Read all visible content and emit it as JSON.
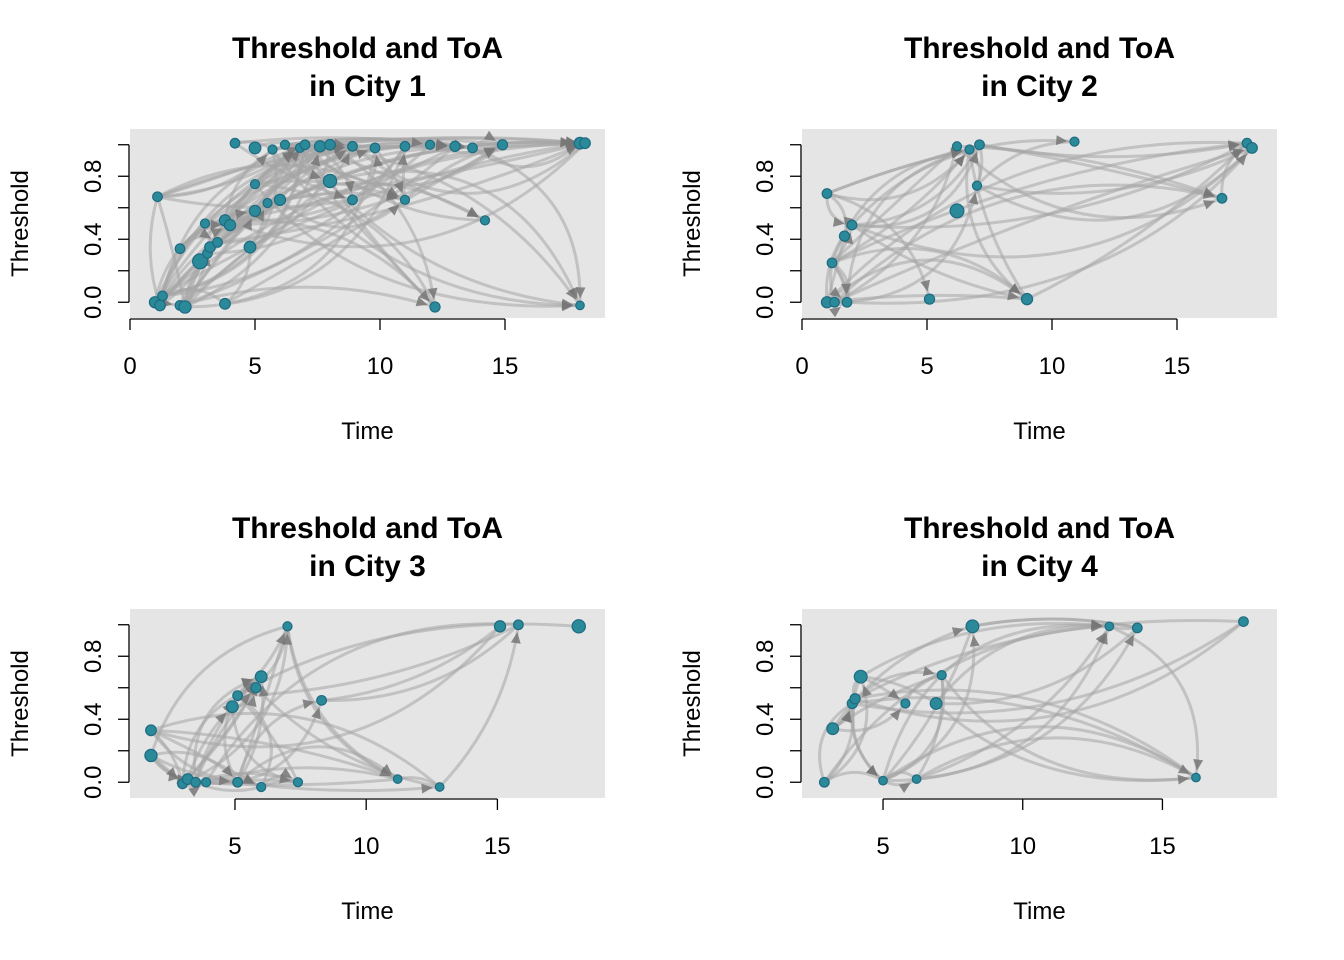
{
  "colors": {
    "panel_background": "#e5e5e5",
    "node": "#2a8a99",
    "node_border": "#1f6b82",
    "edge": "#a6a6a6",
    "arrow": "#777777"
  },
  "chart_data": [
    {
      "type": "network-scatter",
      "title_line1": "Threshold and ToA",
      "title_line2": "in City 1",
      "xlabel": "Time",
      "ylabel": "Threshold",
      "xlim": [
        0,
        19
      ],
      "ylim": [
        -0.1,
        1.1
      ],
      "xticks": [
        0,
        5,
        10,
        15
      ],
      "yticks": [
        0.0,
        0.4,
        0.8
      ],
      "yminor": [
        0.2,
        0.6,
        1.0
      ],
      "grid": false,
      "nodes": [
        {
          "x": 1.0,
          "y": 0.0,
          "s": 1.3
        },
        {
          "x": 1.2,
          "y": -0.02,
          "s": 1.2
        },
        {
          "x": 1.3,
          "y": 0.04,
          "s": 1.0
        },
        {
          "x": 1.1,
          "y": 0.67,
          "s": 1.0
        },
        {
          "x": 2.0,
          "y": 0.34,
          "s": 1.0
        },
        {
          "x": 2.0,
          "y": -0.02,
          "s": 1.0
        },
        {
          "x": 2.2,
          "y": -0.03,
          "s": 1.5
        },
        {
          "x": 2.8,
          "y": 0.26,
          "s": 2.0
        },
        {
          "x": 3.1,
          "y": 0.31,
          "s": 1.0
        },
        {
          "x": 3.2,
          "y": 0.35,
          "s": 1.2
        },
        {
          "x": 3.0,
          "y": 0.5,
          "s": 0.9
        },
        {
          "x": 3.5,
          "y": 0.38,
          "s": 1.0
        },
        {
          "x": 3.8,
          "y": 0.52,
          "s": 1.3
        },
        {
          "x": 4.0,
          "y": 0.49,
          "s": 1.3
        },
        {
          "x": 3.8,
          "y": -0.01,
          "s": 1.2
        },
        {
          "x": 4.2,
          "y": 1.01,
          "s": 1.0
        },
        {
          "x": 4.8,
          "y": 0.35,
          "s": 1.4
        },
        {
          "x": 5.0,
          "y": 0.98,
          "s": 1.4
        },
        {
          "x": 5.0,
          "y": 0.58,
          "s": 1.3
        },
        {
          "x": 5.0,
          "y": 0.75,
          "s": 0.9
        },
        {
          "x": 5.5,
          "y": 0.63,
          "s": 0.9
        },
        {
          "x": 5.7,
          "y": 0.97,
          "s": 0.9
        },
        {
          "x": 6.0,
          "y": 0.65,
          "s": 1.3
        },
        {
          "x": 6.2,
          "y": 1.0,
          "s": 0.9
        },
        {
          "x": 6.8,
          "y": 0.98,
          "s": 0.9
        },
        {
          "x": 7.0,
          "y": 1.0,
          "s": 1.0
        },
        {
          "x": 7.6,
          "y": 0.99,
          "s": 1.3
        },
        {
          "x": 8.0,
          "y": 0.77,
          "s": 1.7
        },
        {
          "x": 8.0,
          "y": 1.0,
          "s": 1.2
        },
        {
          "x": 8.9,
          "y": 0.99,
          "s": 1.0
        },
        {
          "x": 8.9,
          "y": 0.65,
          "s": 1.0
        },
        {
          "x": 9.8,
          "y": 0.98,
          "s": 1.0
        },
        {
          "x": 11.0,
          "y": 0.99,
          "s": 1.0
        },
        {
          "x": 11.0,
          "y": 0.65,
          "s": 0.9
        },
        {
          "x": 12.0,
          "y": 1.0,
          "s": 0.9
        },
        {
          "x": 12.2,
          "y": -0.03,
          "s": 1.1
        },
        {
          "x": 13.0,
          "y": 0.99,
          "s": 1.1
        },
        {
          "x": 13.7,
          "y": 0.98,
          "s": 1.0
        },
        {
          "x": 14.2,
          "y": 0.52,
          "s": 0.9
        },
        {
          "x": 14.9,
          "y": 1.0,
          "s": 1.1
        },
        {
          "x": 18.0,
          "y": -0.02,
          "s": 0.8
        },
        {
          "x": 18.0,
          "y": 1.01,
          "s": 1.4
        },
        {
          "x": 18.2,
          "y": 1.01,
          "s": 1.2
        }
      ]
    },
    {
      "type": "network-scatter",
      "title_line1": "Threshold and ToA",
      "title_line2": "in City 2",
      "xlabel": "Time",
      "ylabel": "Threshold",
      "xlim": [
        0,
        19
      ],
      "ylim": [
        -0.1,
        1.1
      ],
      "xticks": [
        0,
        5,
        10,
        15
      ],
      "yticks": [
        0.0,
        0.4,
        0.8
      ],
      "yminor": [
        0.2,
        0.6,
        1.0
      ],
      "grid": false,
      "nodes": [
        {
          "x": 1.0,
          "y": 0.0,
          "s": 1.3
        },
        {
          "x": 1.0,
          "y": 0.69,
          "s": 1.0
        },
        {
          "x": 1.2,
          "y": 0.25,
          "s": 1.0
        },
        {
          "x": 1.3,
          "y": 0.0,
          "s": 1.0
        },
        {
          "x": 1.7,
          "y": 0.42,
          "s": 1.1
        },
        {
          "x": 1.8,
          "y": 0.0,
          "s": 1.0
        },
        {
          "x": 2.0,
          "y": 0.49,
          "s": 1.0
        },
        {
          "x": 5.1,
          "y": 0.02,
          "s": 1.1
        },
        {
          "x": 6.2,
          "y": 0.58,
          "s": 1.8
        },
        {
          "x": 6.2,
          "y": 0.99,
          "s": 0.9
        },
        {
          "x": 6.7,
          "y": 0.97,
          "s": 0.9
        },
        {
          "x": 7.0,
          "y": 0.74,
          "s": 0.9
        },
        {
          "x": 7.1,
          "y": 1.0,
          "s": 1.0
        },
        {
          "x": 9.0,
          "y": 0.02,
          "s": 1.3
        },
        {
          "x": 10.9,
          "y": 1.02,
          "s": 0.9
        },
        {
          "x": 16.8,
          "y": 0.66,
          "s": 1.0
        },
        {
          "x": 17.8,
          "y": 1.01,
          "s": 1.0
        },
        {
          "x": 18.0,
          "y": 0.98,
          "s": 1.2
        }
      ]
    },
    {
      "type": "network-scatter",
      "title_line1": "Threshold and ToA",
      "title_line2": "in City 3",
      "xlabel": "Time",
      "ylabel": "Threshold",
      "xlim": [
        1.0,
        19.1
      ],
      "ylim": [
        -0.1,
        1.1
      ],
      "xticks": [
        5,
        10,
        15
      ],
      "yticks": [
        0.0,
        0.4,
        0.8
      ],
      "yminor": [
        0.2,
        0.6,
        1.0
      ],
      "grid": false,
      "nodes": [
        {
          "x": 1.8,
          "y": 0.33,
          "s": 1.2
        },
        {
          "x": 1.8,
          "y": 0.17,
          "s": 1.5
        },
        {
          "x": 3.0,
          "y": -0.01,
          "s": 1.0
        },
        {
          "x": 3.2,
          "y": 0.02,
          "s": 1.2
        },
        {
          "x": 3.5,
          "y": 0.0,
          "s": 1.0
        },
        {
          "x": 3.9,
          "y": 0.0,
          "s": 0.9
        },
        {
          "x": 4.9,
          "y": 0.48,
          "s": 1.4
        },
        {
          "x": 5.1,
          "y": 0.55,
          "s": 1.0
        },
        {
          "x": 5.1,
          "y": 0.0,
          "s": 1.0
        },
        {
          "x": 5.8,
          "y": 0.6,
          "s": 1.1
        },
        {
          "x": 6.0,
          "y": 0.67,
          "s": 1.4
        },
        {
          "x": 6.0,
          "y": -0.03,
          "s": 0.9
        },
        {
          "x": 7.0,
          "y": 0.99,
          "s": 0.9
        },
        {
          "x": 7.4,
          "y": 0.0,
          "s": 0.9
        },
        {
          "x": 8.3,
          "y": 0.52,
          "s": 1.0
        },
        {
          "x": 11.2,
          "y": 0.02,
          "s": 0.8
        },
        {
          "x": 12.8,
          "y": -0.03,
          "s": 0.8
        },
        {
          "x": 15.1,
          "y": 0.99,
          "s": 1.3
        },
        {
          "x": 15.8,
          "y": 1.0,
          "s": 1.0
        },
        {
          "x": 18.1,
          "y": 0.99,
          "s": 1.7
        }
      ]
    },
    {
      "type": "network-scatter",
      "title_line1": "Threshold and ToA",
      "title_line2": "in City 4",
      "xlabel": "Time",
      "ylabel": "Threshold",
      "xlim": [
        2.1,
        19.1
      ],
      "ylim": [
        -0.1,
        1.1
      ],
      "xticks": [
        5,
        10,
        15
      ],
      "yticks": [
        0.0,
        0.4,
        0.8
      ],
      "yminor": [
        0.2,
        0.6,
        1.0
      ],
      "grid": false,
      "nodes": [
        {
          "x": 2.9,
          "y": 0.0,
          "s": 1.0
        },
        {
          "x": 3.2,
          "y": 0.34,
          "s": 1.4
        },
        {
          "x": 3.9,
          "y": 0.5,
          "s": 1.1
        },
        {
          "x": 4.0,
          "y": 0.53,
          "s": 1.1
        },
        {
          "x": 4.2,
          "y": 0.67,
          "s": 1.6
        },
        {
          "x": 5.0,
          "y": 0.01,
          "s": 0.8
        },
        {
          "x": 5.8,
          "y": 0.5,
          "s": 0.9
        },
        {
          "x": 6.2,
          "y": 0.02,
          "s": 0.8
        },
        {
          "x": 6.9,
          "y": 0.5,
          "s": 1.4
        },
        {
          "x": 7.1,
          "y": 0.68,
          "s": 0.9
        },
        {
          "x": 8.2,
          "y": 0.99,
          "s": 1.6
        },
        {
          "x": 13.1,
          "y": 0.99,
          "s": 0.8
        },
        {
          "x": 14.1,
          "y": 0.98,
          "s": 1.0
        },
        {
          "x": 16.2,
          "y": 0.03,
          "s": 0.8
        },
        {
          "x": 17.9,
          "y": 1.02,
          "s": 1.0
        }
      ]
    }
  ]
}
